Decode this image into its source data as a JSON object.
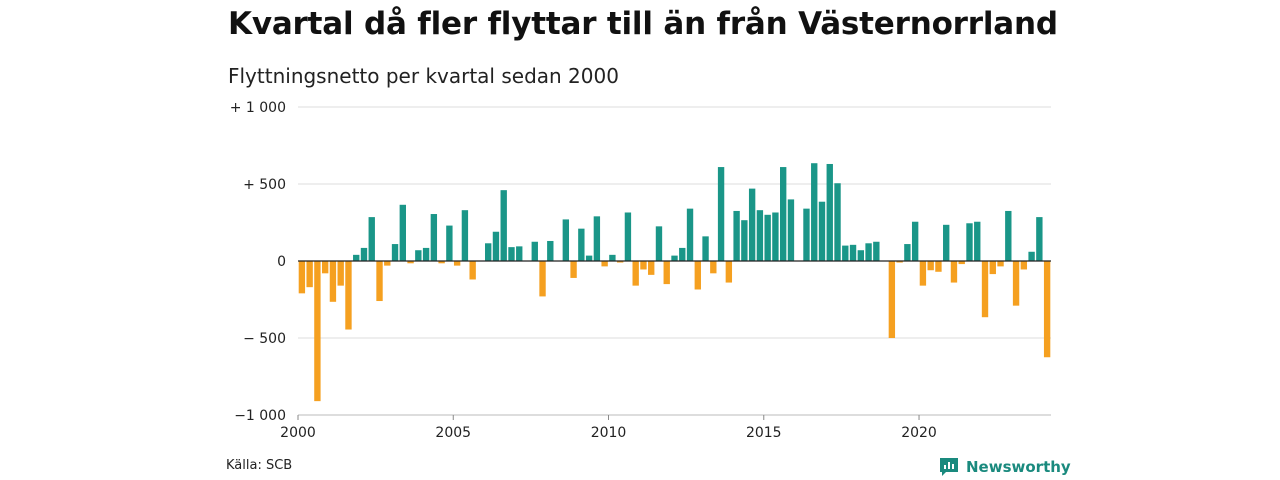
{
  "title": "Kvartal då fler flyttar till än från Västernorrland",
  "subtitle": "Flyttningsnetto per kvartal sedan 2000",
  "source": "Källa: SCB",
  "brand": "Newsworthy",
  "colors": {
    "positive": "#1a9688",
    "negative": "#f5a020",
    "grid": "#dddddd",
    "zero": "#222222"
  },
  "chart_data": {
    "type": "bar",
    "ylim": [
      -1000,
      1000
    ],
    "y_ticks": [
      {
        "value": 1000,
        "label": "+ 1 000"
      },
      {
        "value": 500,
        "label": "+   500"
      },
      {
        "value": 0,
        "label": "0"
      },
      {
        "value": -500,
        "label": "−   500"
      },
      {
        "value": -1000,
        "label": "−1 000"
      }
    ],
    "x_ticks": [
      "2000",
      "2005",
      "2010",
      "2015",
      "2020"
    ],
    "start_year": 2000,
    "quarters_per_year": 4,
    "grid": true,
    "values": [
      -210,
      -170,
      -910,
      -80,
      -265,
      -160,
      -445,
      40,
      85,
      285,
      -260,
      -30,
      110,
      365,
      -15,
      70,
      85,
      305,
      -15,
      230,
      -30,
      330,
      -120,
      0,
      115,
      190,
      460,
      90,
      95,
      0,
      125,
      -230,
      130,
      0,
      270,
      -110,
      210,
      35,
      290,
      -35,
      40,
      -10,
      315,
      -160,
      -55,
      -90,
      225,
      -150,
      35,
      85,
      340,
      -185,
      160,
      -80,
      610,
      -140,
      325,
      265,
      470,
      330,
      300,
      315,
      610,
      400,
      0,
      340,
      635,
      385,
      630,
      505,
      100,
      105,
      70,
      115,
      125,
      0,
      -500,
      -10,
      110,
      255,
      -160,
      -60,
      -70,
      235,
      -140,
      -20,
      245,
      255,
      -365,
      -85,
      -35,
      325,
      -290,
      -55,
      60,
      285,
      -625
    ]
  }
}
